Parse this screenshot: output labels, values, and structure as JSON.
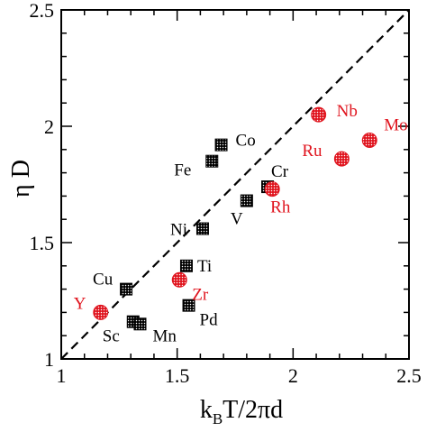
{
  "chart_data": {
    "type": "scatter",
    "title": "",
    "xlabel": {
      "main": "k",
      "sub": "B",
      "rest": "T/2πd"
    },
    "ylabel": "η D",
    "xlim": [
      1,
      2.5
    ],
    "ylim": [
      1,
      2.5
    ],
    "x_ticks": [
      {
        "value": 1,
        "label": "1"
      },
      {
        "value": 1.5,
        "label": "1.5"
      },
      {
        "value": 2,
        "label": "2"
      },
      {
        "value": 2.5,
        "label": "2.5"
      }
    ],
    "y_ticks": [
      {
        "value": 1,
        "label": "1"
      },
      {
        "value": 1.5,
        "label": "1.5"
      },
      {
        "value": 2,
        "label": "2"
      },
      {
        "value": 2.5,
        "label": "2.5"
      }
    ],
    "minor_tick_step": 0.1,
    "grid": false,
    "reference_line": {
      "style": "dashed",
      "from": [
        1,
        1
      ],
      "to": [
        2.5,
        2.5
      ]
    },
    "colors": {
      "black_group": "#000000",
      "red_group": "#e0141e"
    },
    "series": [
      {
        "marker": "square",
        "color": "#000000",
        "points": [
          {
            "label": "Co",
            "x": 1.69,
            "y": 1.92,
            "label_dx": 16,
            "label_dy": -5
          },
          {
            "label": "Fe",
            "x": 1.65,
            "y": 1.85,
            "label_dx": -42,
            "label_dy": 10
          },
          {
            "label": "Cr",
            "x": 1.89,
            "y": 1.74,
            "label_dx": 4,
            "label_dy": -17
          },
          {
            "label": "V",
            "x": 1.8,
            "y": 1.68,
            "label_dx": -18,
            "label_dy": 20
          },
          {
            "label": "Ni",
            "x": 1.61,
            "y": 1.56,
            "label_dx": -36,
            "label_dy": 1
          },
          {
            "label": "Ti",
            "x": 1.54,
            "y": 1.4,
            "label_dx": 12,
            "label_dy": 0
          },
          {
            "label": "Cu",
            "x": 1.28,
            "y": 1.3,
            "label_dx": -37,
            "label_dy": -11
          },
          {
            "label": "Pd",
            "x": 1.55,
            "y": 1.23,
            "label_dx": 12,
            "label_dy": 16
          },
          {
            "label": "Sc",
            "x": 1.31,
            "y": 1.16,
            "label_dx": -34,
            "label_dy": 16
          },
          {
            "label": "Mn",
            "x": 1.34,
            "y": 1.15,
            "label_dx": 14,
            "label_dy": 13
          }
        ]
      },
      {
        "marker": "circle",
        "color": "#e0141e",
        "points": [
          {
            "label": "Nb",
            "x": 2.11,
            "y": 2.05,
            "label_dx": 20,
            "label_dy": -4
          },
          {
            "label": "Mo",
            "x": 2.33,
            "y": 1.94,
            "label_dx": 16,
            "label_dy": -17
          },
          {
            "label": "Ru",
            "x": 2.21,
            "y": 1.86,
            "label_dx": -44,
            "label_dy": -9
          },
          {
            "label": "Rh",
            "x": 1.91,
            "y": 1.73,
            "label_dx": -2,
            "label_dy": 20
          },
          {
            "label": "Zr",
            "x": 1.51,
            "y": 1.34,
            "label_dx": 14,
            "label_dy": 16
          },
          {
            "label": "Y",
            "x": 1.17,
            "y": 1.2,
            "label_dx": -30,
            "label_dy": -10
          }
        ]
      }
    ]
  }
}
